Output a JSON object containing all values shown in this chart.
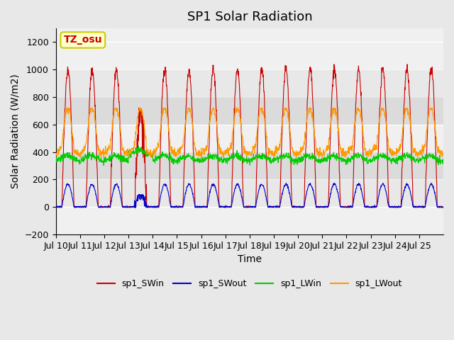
{
  "title": "SP1 Solar Radiation",
  "ylabel": "Solar Radiation (W/m2)",
  "xlabel": "Time",
  "annotation_text": "TZ_osu",
  "annotation_color": "#cc0000",
  "annotation_bg": "#ffffcc",
  "annotation_border": "#cccc00",
  "ylim": [
    -200,
    1300
  ],
  "yticks": [
    -200,
    0,
    200,
    400,
    600,
    800,
    1000,
    1200
  ],
  "n_days": 16,
  "day_start": 10,
  "day_end": 25,
  "xtick_labels": [
    "Jul 10",
    "Jul 11",
    "Jul 12",
    "Jul 13",
    "Jul 14",
    "Jul 15",
    "Jul 16",
    "Jul 17",
    "Jul 18",
    "Jul 19",
    "Jul 20",
    "Jul 21",
    "Jul 22",
    "Jul 23",
    "Jul 24",
    "Jul 25"
  ],
  "line_colors": {
    "SWin": "#cc0000",
    "SWout": "#0000cc",
    "LWin": "#00cc00",
    "LWout": "#ff9900"
  },
  "legend_labels": [
    "sp1_SWin",
    "sp1_SWout",
    "sp1_LWin",
    "sp1_LWout"
  ],
  "bg_color": "#e8e8e8",
  "plot_bg": "#f0f0f0",
  "grid_color": "#ffffff",
  "title_fontsize": 13,
  "axis_fontsize": 10,
  "tick_fontsize": 9,
  "legend_fontsize": 9
}
